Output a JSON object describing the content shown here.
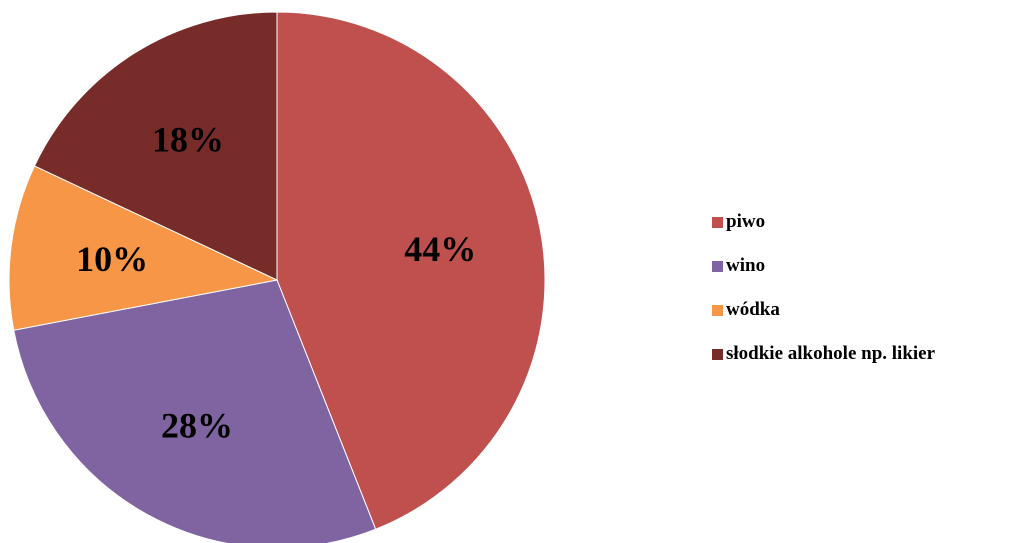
{
  "chart_data": {
    "type": "pie",
    "legend_position": "right",
    "slices": [
      {
        "name": "piwo",
        "value": 44,
        "label": "44%",
        "color": "#C0504D"
      },
      {
        "name": "wino",
        "value": 28,
        "label": "28%",
        "color": "#8064A2"
      },
      {
        "name": "wódka",
        "value": 10,
        "label": "10%",
        "color": "#F79646"
      },
      {
        "name": "słodkie alkohole np. likier",
        "value": 18,
        "label": "18%",
        "color": "#772C2A"
      }
    ]
  }
}
